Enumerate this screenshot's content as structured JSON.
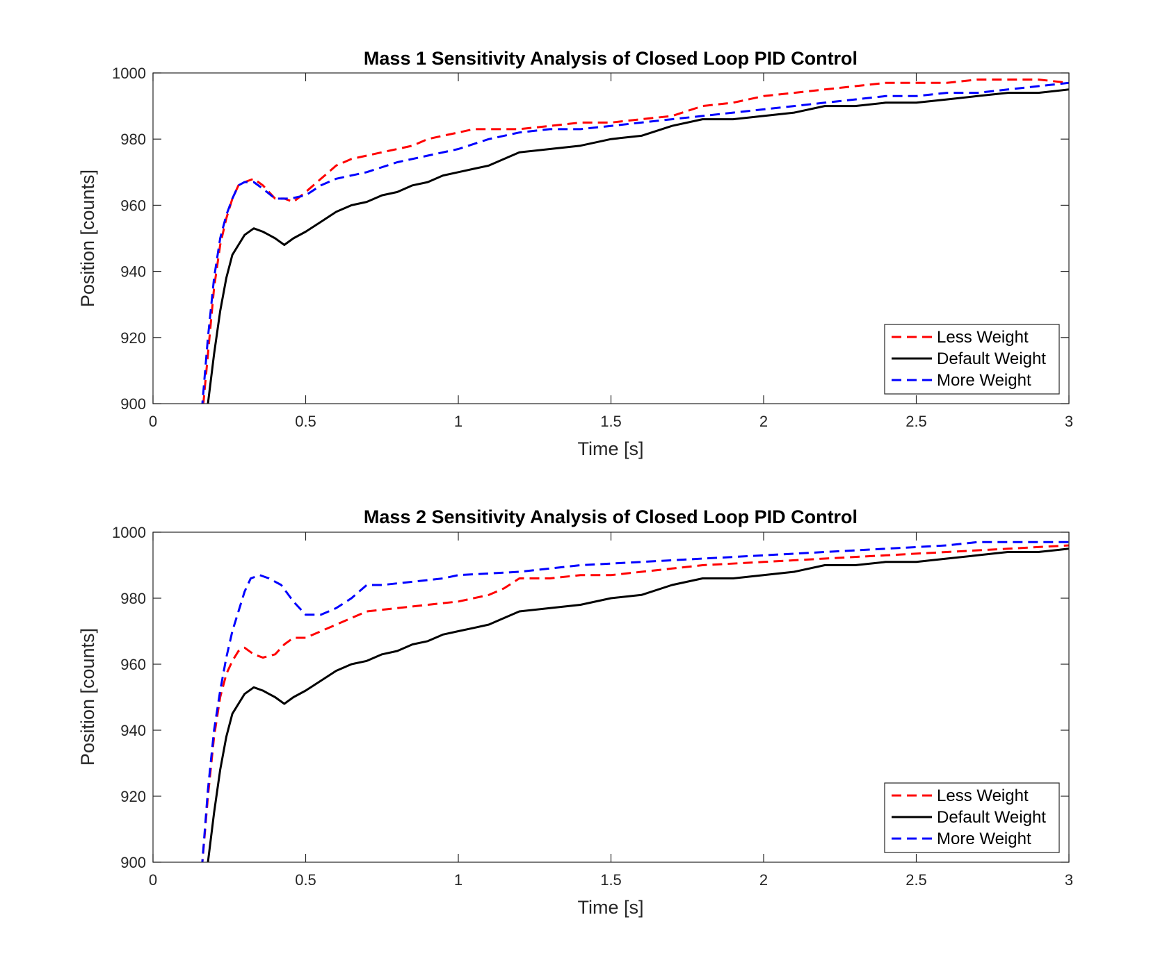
{
  "chart_data": [
    {
      "type": "line",
      "title": "Mass 1 Sensitivity Analysis of Closed Loop PID Control",
      "xlabel": "Time [s]",
      "ylabel": "Position [counts]",
      "xlim": [
        0,
        3
      ],
      "ylim": [
        900,
        1000
      ],
      "xticks": [
        0,
        0.5,
        1,
        1.5,
        2,
        2.5,
        3
      ],
      "xtick_labels": [
        "0",
        "0.5",
        "1",
        "1.5",
        "2",
        "2.5",
        "3"
      ],
      "yticks": [
        900,
        920,
        940,
        960,
        980,
        1000
      ],
      "ytick_labels": [
        "900",
        "920",
        "940",
        "960",
        "980",
        "1000"
      ],
      "grid": false,
      "legend_position": "bottom-right",
      "series": [
        {
          "name": "Less Weight",
          "color": "#ff0000",
          "style": "dashed",
          "x": [
            0.16,
            0.18,
            0.2,
            0.22,
            0.24,
            0.26,
            0.28,
            0.3,
            0.33,
            0.36,
            0.4,
            0.43,
            0.46,
            0.5,
            0.55,
            0.6,
            0.65,
            0.7,
            0.75,
            0.8,
            0.85,
            0.9,
            0.95,
            1.0,
            1.05,
            1.1,
            1.2,
            1.3,
            1.4,
            1.5,
            1.6,
            1.7,
            1.8,
            1.9,
            2.0,
            2.1,
            2.2,
            2.3,
            2.4,
            2.5,
            2.6,
            2.7,
            2.8,
            2.9,
            3.0
          ],
          "y": [
            895,
            915,
            935,
            948,
            956,
            962,
            966,
            967,
            968,
            966,
            962,
            962,
            961,
            964,
            968,
            972,
            974,
            975,
            976,
            977,
            978,
            980,
            981,
            982,
            983,
            983,
            983,
            984,
            985,
            985,
            986,
            987,
            990,
            991,
            993,
            994,
            995,
            996,
            997,
            997,
            997,
            998,
            998,
            998,
            997
          ]
        },
        {
          "name": "Default Weight",
          "color": "#000000",
          "style": "solid",
          "x": [
            0.18,
            0.2,
            0.22,
            0.24,
            0.26,
            0.28,
            0.3,
            0.33,
            0.36,
            0.38,
            0.4,
            0.43,
            0.46,
            0.5,
            0.55,
            0.6,
            0.65,
            0.7,
            0.75,
            0.8,
            0.85,
            0.9,
            0.95,
            1.0,
            1.05,
            1.1,
            1.15,
            1.2,
            1.3,
            1.4,
            1.5,
            1.6,
            1.7,
            1.8,
            1.9,
            2.0,
            2.1,
            2.2,
            2.3,
            2.4,
            2.5,
            2.6,
            2.7,
            2.8,
            2.9,
            3.0
          ],
          "y": [
            900,
            915,
            928,
            938,
            945,
            948,
            951,
            953,
            952,
            951,
            950,
            948,
            950,
            952,
            955,
            958,
            960,
            961,
            963,
            964,
            966,
            967,
            969,
            970,
            971,
            972,
            974,
            976,
            977,
            978,
            980,
            981,
            984,
            986,
            986,
            987,
            988,
            990,
            990,
            991,
            991,
            992,
            993,
            994,
            994,
            995
          ]
        },
        {
          "name": "More Weight",
          "color": "#0000ff",
          "style": "dashed",
          "x": [
            0.16,
            0.18,
            0.2,
            0.22,
            0.24,
            0.26,
            0.28,
            0.3,
            0.33,
            0.36,
            0.4,
            0.45,
            0.5,
            0.55,
            0.6,
            0.7,
            0.8,
            0.9,
            1.0,
            1.1,
            1.2,
            1.3,
            1.4,
            1.5,
            1.6,
            1.7,
            1.8,
            1.9,
            2.0,
            2.1,
            2.2,
            2.3,
            2.4,
            2.5,
            2.6,
            2.7,
            2.8,
            2.9,
            3.0
          ],
          "y": [
            898,
            920,
            938,
            950,
            957,
            962,
            966,
            967,
            967,
            965,
            962,
            962,
            963,
            966,
            968,
            970,
            973,
            975,
            977,
            980,
            982,
            983,
            983,
            984,
            985,
            986,
            987,
            988,
            989,
            990,
            991,
            992,
            993,
            993,
            994,
            994,
            995,
            996,
            997
          ]
        }
      ]
    },
    {
      "type": "line",
      "title": "Mass 2 Sensitivity Analysis of Closed Loop PID Control",
      "xlabel": "Time [s]",
      "ylabel": "Position [counts]",
      "xlim": [
        0,
        3
      ],
      "ylim": [
        900,
        1000
      ],
      "xticks": [
        0,
        0.5,
        1,
        1.5,
        2,
        2.5,
        3
      ],
      "xtick_labels": [
        "0",
        "0.5",
        "1",
        "1.5",
        "2",
        "2.5",
        "3"
      ],
      "yticks": [
        900,
        920,
        940,
        960,
        980,
        1000
      ],
      "ytick_labels": [
        "900",
        "920",
        "940",
        "960",
        "980",
        "1000"
      ],
      "grid": false,
      "legend_position": "bottom-right",
      "series": [
        {
          "name": "Less Weight",
          "color": "#ff0000",
          "style": "dashed",
          "x": [
            0.16,
            0.18,
            0.2,
            0.22,
            0.24,
            0.26,
            0.28,
            0.3,
            0.33,
            0.36,
            0.4,
            0.43,
            0.46,
            0.5,
            0.55,
            0.6,
            0.65,
            0.7,
            0.8,
            0.9,
            1.0,
            1.1,
            1.15,
            1.2,
            1.3,
            1.4,
            1.5,
            1.6,
            1.7,
            1.8,
            2.0,
            2.2,
            2.4,
            2.6,
            2.8,
            3.0
          ],
          "y": [
            898,
            920,
            938,
            950,
            957,
            961,
            964,
            965,
            963,
            962,
            963,
            966,
            968,
            968,
            970,
            972,
            974,
            976,
            977,
            978,
            979,
            981,
            983,
            986,
            986,
            987,
            987,
            988,
            989,
            990,
            991,
            992,
            993,
            994,
            995,
            996
          ]
        },
        {
          "name": "Default Weight",
          "color": "#000000",
          "style": "solid",
          "x": [
            0.18,
            0.2,
            0.22,
            0.24,
            0.26,
            0.28,
            0.3,
            0.33,
            0.36,
            0.38,
            0.4,
            0.43,
            0.46,
            0.5,
            0.55,
            0.6,
            0.65,
            0.7,
            0.75,
            0.8,
            0.85,
            0.9,
            0.95,
            1.0,
            1.05,
            1.1,
            1.15,
            1.2,
            1.3,
            1.4,
            1.5,
            1.6,
            1.7,
            1.8,
            1.9,
            2.0,
            2.1,
            2.2,
            2.3,
            2.4,
            2.5,
            2.6,
            2.7,
            2.8,
            2.9,
            3.0
          ],
          "y": [
            900,
            915,
            928,
            938,
            945,
            948,
            951,
            953,
            952,
            951,
            950,
            948,
            950,
            952,
            955,
            958,
            960,
            961,
            963,
            964,
            966,
            967,
            969,
            970,
            971,
            972,
            974,
            976,
            977,
            978,
            980,
            981,
            984,
            986,
            986,
            987,
            988,
            990,
            990,
            991,
            991,
            992,
            993,
            994,
            994,
            995
          ]
        },
        {
          "name": "More Weight",
          "color": "#0000ff",
          "style": "dashed",
          "x": [
            0.16,
            0.18,
            0.2,
            0.22,
            0.24,
            0.26,
            0.28,
            0.3,
            0.32,
            0.35,
            0.38,
            0.42,
            0.46,
            0.5,
            0.55,
            0.6,
            0.65,
            0.7,
            0.75,
            0.85,
            0.95,
            1.0,
            1.2,
            1.4,
            1.6,
            1.8,
            2.0,
            2.2,
            2.4,
            2.6,
            2.7,
            2.8,
            3.0
          ],
          "y": [
            898,
            922,
            940,
            952,
            962,
            970,
            976,
            982,
            986,
            987,
            986,
            984,
            979,
            975,
            975,
            977,
            980,
            984,
            984,
            985,
            986,
            987,
            988,
            990,
            991,
            992,
            993,
            994,
            995,
            996,
            997,
            997,
            997
          ]
        }
      ]
    }
  ]
}
